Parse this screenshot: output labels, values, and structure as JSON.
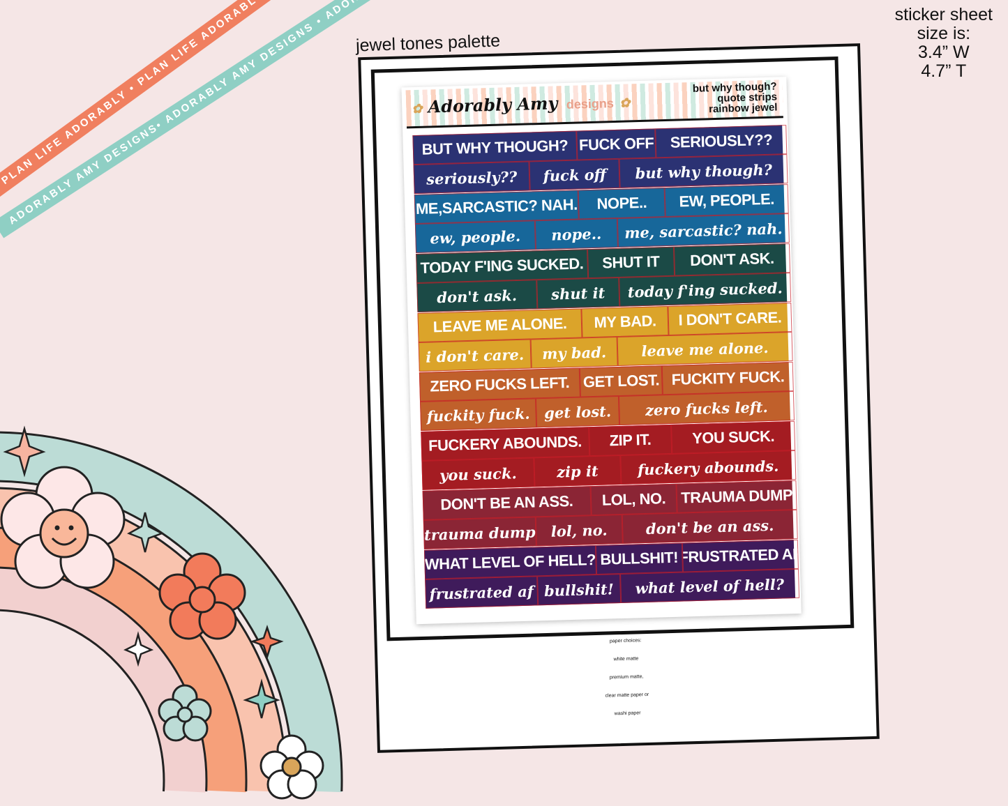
{
  "ribbons": {
    "top": "PLAN LIFE ADORABLY • PLAN LIFE ADORABLY • PLAN LIFE AD",
    "bottom": "ADORABLY AMY DESIGNS• ADORABLY AMY DESIGNS • ADORABLY AMY DESIGNS"
  },
  "size": {
    "line1": "sticker sheet",
    "line2": "size is:",
    "width": "3.4” W",
    "height": "4.7” T"
  },
  "palette_label": "jewel tones palette",
  "sheet": {
    "brand": "Adorably Amy",
    "brand_suffix": "designs",
    "title_lines": [
      "but why though?",
      "quote strips",
      "rainbow jewel"
    ],
    "strips": [
      {
        "color": "#2b3273",
        "caps": [
          "BUT WHY THOUGH?",
          "FUCK OFF",
          "SERIOUSLY??"
        ],
        "script": [
          "seriously??",
          "fuck off",
          "but why though?"
        ]
      },
      {
        "color": "#17679a",
        "caps": [
          "ME,SARCASTIC? NAH.",
          "NOPE..",
          "EW, PEOPLE."
        ],
        "script": [
          "ew, people.",
          "nope..",
          "me, sarcastic? nah."
        ]
      },
      {
        "color": "#1b4a46",
        "caps": [
          "TODAY F'ING SUCKED.",
          "SHUT IT",
          "DON'T ASK."
        ],
        "script": [
          "don't ask.",
          "shut it",
          "today f'ing sucked."
        ]
      },
      {
        "color": "#dba42a",
        "caps": [
          "LEAVE ME ALONE.",
          "MY BAD.",
          "I DON'T CARE."
        ],
        "script": [
          "i don't care.",
          "my bad.",
          "leave me alone."
        ]
      },
      {
        "color": "#c0602b",
        "caps": [
          "ZERO FUCKS LEFT.",
          "GET LOST.",
          "FUCKITY FUCK."
        ],
        "script": [
          "fuckity fuck.",
          "get lost.",
          "zero fucks left."
        ]
      },
      {
        "color": "#a41c22",
        "caps": [
          "FUCKERY ABOUNDS.",
          "ZIP IT.",
          "YOU SUCK."
        ],
        "script": [
          "you suck.",
          "zip it",
          "fuckery abounds."
        ]
      },
      {
        "color": "#8b2535",
        "caps": [
          "DON'T BE AN ASS.",
          "LOL, NO.",
          "TRAUMA DUMP"
        ],
        "script": [
          "trauma dump",
          "lol, no.",
          "don't be an ass."
        ]
      },
      {
        "color": "#3f1b5b",
        "caps": [
          "WHAT LEVEL OF HELL?",
          "BULLSHIT!",
          "FRUSTRATED AF"
        ],
        "script": [
          "frustrated af",
          "bullshit!",
          "what level of hell?"
        ]
      }
    ]
  },
  "paper_choices": [
    "paper choices:",
    "white matte",
    "premium matte,",
    "clear matte paper or",
    "washi paper"
  ]
}
